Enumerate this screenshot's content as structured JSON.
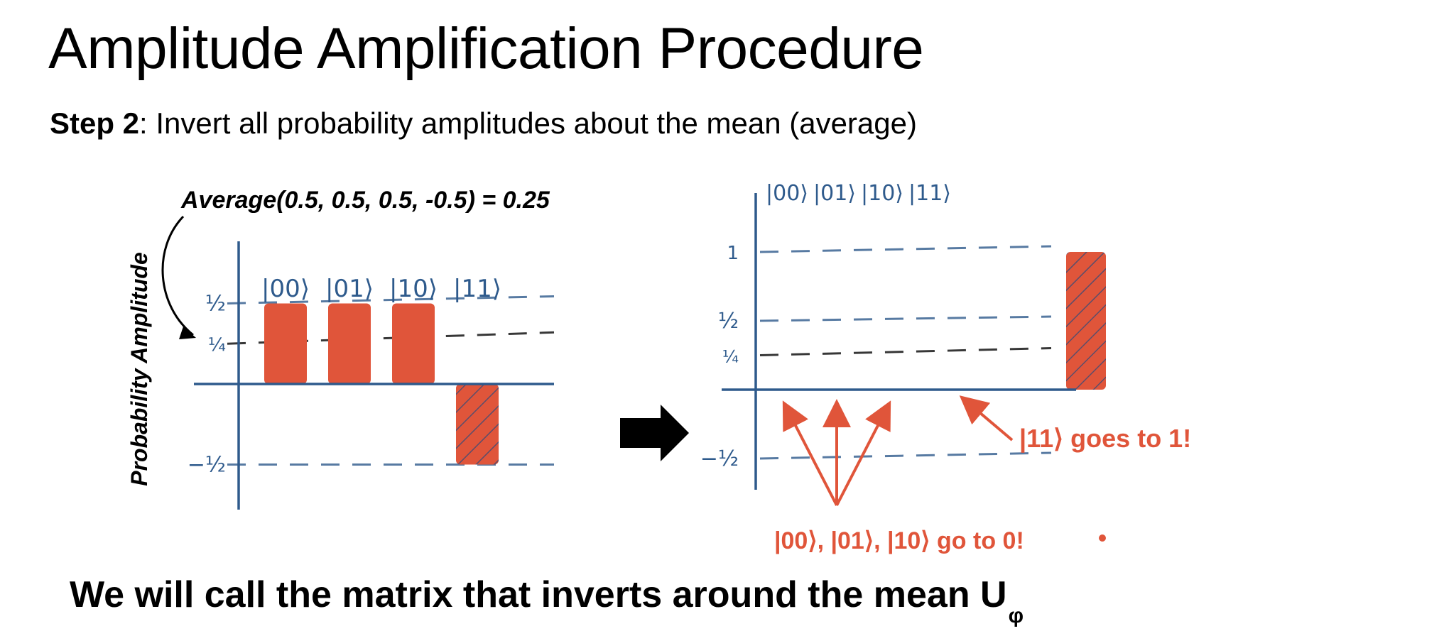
{
  "slide": {
    "title": "Amplitude Amplification Procedure",
    "step_label": "Step 2",
    "step_text": ": Invert all probability amplitudes about the mean (average)",
    "footer_text": "We will call the matrix that inverts around the mean U",
    "footer_subscript": "φ"
  },
  "left_chart": {
    "annotation": "Average(0.5, 0.5, 0.5, -0.5) = 0.25",
    "ylabel": "Probability Amplitude",
    "ticks": {
      "half": "½",
      "quarter": "¼",
      "neg_half": "−½"
    },
    "states": [
      "|00⟩",
      "|01⟩",
      "|10⟩",
      "|11⟩"
    ],
    "amplitudes": [
      0.5,
      0.5,
      0.5,
      -0.5
    ],
    "mean": 0.25
  },
  "right_chart": {
    "states": [
      "|00⟩",
      "|01⟩",
      "|10⟩",
      "|11⟩"
    ],
    "amplitudes": [
      0,
      0,
      0,
      1
    ],
    "ticks": {
      "one": "1",
      "half": "½",
      "quarter": "¼",
      "neg_half": "−½"
    },
    "note_11": "|11⟩ goes to 1!",
    "note_others": "|00⟩, |01⟩, |10⟩ go to 0!"
  },
  "colors": {
    "bar": "#e0553a",
    "axis": "#2e5a8c",
    "dash": "#2e5a8c",
    "hatch": "#2e4a7a",
    "note": "#e0553a"
  }
}
